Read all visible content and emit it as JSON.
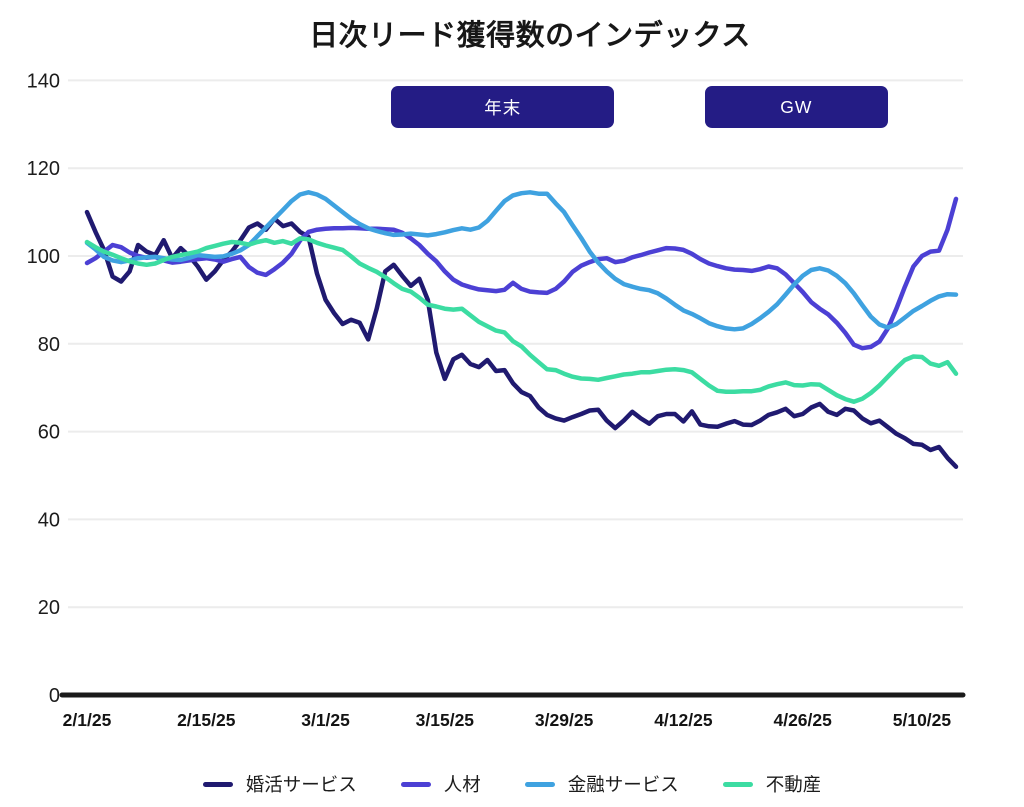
{
  "chart_data": {
    "type": "line",
    "title": "日次リード獲得数のインデックス",
    "x_unit": "daily index, day 0 = 2/1/25",
    "x_tick_days": [
      0,
      14,
      28,
      42,
      56,
      70,
      84,
      98
    ],
    "x_tick_labels": [
      "2/1/25",
      "2/15/25",
      "3/1/25",
      "3/15/25",
      "3/29/25",
      "4/12/25",
      "4/26/25",
      "5/10/25"
    ],
    "y_ticks": [
      0,
      20,
      40,
      60,
      80,
      100,
      120,
      140
    ],
    "ylim": [
      0,
      140
    ],
    "grid": "horizontal-light",
    "legend_position": "bottom",
    "colors": {
      "axis": "#1a1a1a",
      "gridline": "#ececec",
      "annotation_box": "#241c85",
      "annotation_text": "#ffffff"
    },
    "annotations": [
      {
        "label": "年末",
        "x_day_range": [
          35.7,
          61.9
        ]
      },
      {
        "label": "GW",
        "x_day_range": [
          72.5,
          94.0
        ]
      }
    ],
    "series": [
      {
        "name": "婚活サービス",
        "color": "#201a70",
        "values": [
          110,
          105.5,
          101.4,
          95.3,
          94.2,
          96.5,
          102.5,
          101,
          100.2,
          103.6,
          99.5,
          101.8,
          100,
          97.6,
          94.6,
          96.5,
          99.1,
          101,
          103.6,
          106.5,
          107.4,
          106,
          108.5,
          106.8,
          107.4,
          105.5,
          104.4,
          96,
          90,
          87,
          84.5,
          85.5,
          84.8,
          81,
          88,
          96.5,
          98,
          95.5,
          93.2,
          94.8,
          90,
          78,
          72,
          76.5,
          77.5,
          75.4,
          74.7,
          76.3,
          73.8,
          74,
          71,
          69,
          68.1,
          65.5,
          63.8,
          63,
          62.5,
          63.3,
          64,
          64.8,
          65,
          62.5,
          60.8,
          62.5,
          64.5,
          63,
          61.8,
          63.5,
          64,
          64,
          62.3,
          64.6,
          61.6,
          61.2,
          61.1,
          61.8,
          62.4,
          61.6,
          61.5,
          62.5,
          63.8,
          64.4,
          65.2,
          63.5,
          64,
          65.5,
          66.3,
          64.5,
          63.8,
          65.2,
          64.8,
          63,
          61.9,
          62.5,
          61,
          59.5,
          58.5,
          57.2,
          57,
          55.8,
          56.5,
          54,
          52
        ]
      },
      {
        "name": "人材",
        "color": "#4c40d4",
        "values": [
          98.4,
          99.5,
          101,
          102.5,
          102,
          100.8,
          100,
          99.6,
          99.8,
          99,
          98.5,
          98.7,
          99,
          99.3,
          99.5,
          99.2,
          98.7,
          99.3,
          99.8,
          97.5,
          96.2,
          95.7,
          97,
          98.5,
          100.5,
          103.5,
          105.5,
          106,
          106.2,
          106.3,
          106.3,
          106.4,
          106.3,
          106.2,
          106.2,
          106.1,
          106,
          105.3,
          104,
          102.5,
          100.5,
          98.8,
          96.5,
          94.6,
          93.5,
          92.9,
          92.4,
          92.2,
          92,
          92.3,
          93.9,
          92.5,
          91.9,
          91.7,
          91.6,
          92.5,
          94.2,
          96.4,
          97.8,
          98.6,
          99.3,
          99.5,
          98.6,
          98.9,
          99.7,
          100.2,
          100.8,
          101.3,
          101.8,
          101.7,
          101.4,
          100.5,
          99.3,
          98.3,
          97.7,
          97.2,
          96.9,
          96.8,
          96.6,
          97,
          97.6,
          97.2,
          95.8,
          93.8,
          91.8,
          89.5,
          88,
          86.7,
          84.8,
          82.5,
          79.8,
          79,
          79.3,
          80.5,
          83.5,
          88,
          93,
          97.6,
          100,
          101,
          101.2,
          106,
          113
        ]
      },
      {
        "name": "金融サービス",
        "color": "#3fa2e0",
        "values": [
          103,
          101.5,
          99.8,
          99,
          98.6,
          99,
          99.5,
          99.7,
          99.8,
          99.5,
          99.2,
          99.1,
          99.6,
          100.2,
          100,
          99.8,
          99.9,
          100.5,
          101.3,
          102.5,
          104.5,
          106.5,
          108.5,
          110.5,
          112.5,
          114,
          114.5,
          114,
          113,
          111.5,
          110,
          108.5,
          107.3,
          106.3,
          105.7,
          105.2,
          104.8,
          104.9,
          105.1,
          104.9,
          104.7,
          105,
          105.4,
          105.9,
          106.3,
          106,
          106.5,
          108,
          110.3,
          112.5,
          113.8,
          114.3,
          114.5,
          114.2,
          114.2,
          112,
          110,
          107,
          104.1,
          101,
          98.5,
          96.5,
          94.8,
          93.6,
          93,
          92.5,
          92.2,
          91.5,
          90.3,
          88.9,
          87.6,
          86.8,
          85.8,
          84.7,
          84,
          83.5,
          83.3,
          83.5,
          84.5,
          85.8,
          87.3,
          89,
          91.2,
          93.5,
          95.5,
          96.8,
          97.2,
          96.7,
          95.5,
          93.8,
          91.5,
          88.8,
          86.2,
          84.4,
          83.7,
          84.5,
          86,
          87.5,
          88.6,
          89.8,
          90.8,
          91.3,
          91.2
        ]
      },
      {
        "name": "不動産",
        "color": "#3cdca2",
        "values": [
          103.2,
          102,
          101,
          100.3,
          99.5,
          98.8,
          98.3,
          98,
          98.3,
          99.1,
          99.8,
          100.2,
          100.6,
          101,
          101.8,
          102.3,
          102.8,
          103.2,
          103,
          102.6,
          103.2,
          103.6,
          103,
          103.4,
          102.8,
          104,
          103.8,
          103,
          102.4,
          101.9,
          101.4,
          99.9,
          98.3,
          97.3,
          96.4,
          95.2,
          93.8,
          92.5,
          91.9,
          90.5,
          88.9,
          88.5,
          88,
          87.8,
          88,
          86.5,
          85,
          84,
          83,
          82.6,
          80.6,
          79.4,
          77.5,
          75.8,
          74.2,
          74,
          73.2,
          72.5,
          72.1,
          72,
          71.8,
          72.2,
          72.6,
          73,
          73.2,
          73.5,
          73.5,
          73.8,
          74.1,
          74.2,
          74,
          73.5,
          72,
          70.5,
          69.3,
          69.1,
          69.1,
          69.2,
          69.2,
          69.5,
          70.3,
          70.8,
          71.2,
          70.6,
          70.5,
          70.8,
          70.7,
          69.5,
          68.3,
          67.4,
          66.8,
          67.5,
          68.8,
          70.5,
          72.5,
          74.5,
          76.3,
          77.1,
          77,
          75.5,
          75,
          75.8,
          73.2
        ]
      }
    ]
  }
}
